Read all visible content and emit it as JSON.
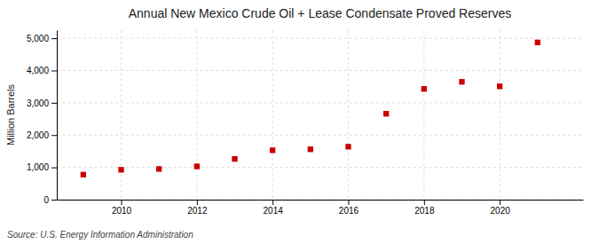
{
  "chart_data": {
    "type": "scatter",
    "title": "Annual New Mexico Crude Oil + Lease Condensate Proved Reserves",
    "ylabel": "Million Barrels",
    "source": "Source: U.S. Energy Information Administration",
    "x": [
      2009,
      2010,
      2011,
      2012,
      2013,
      2014,
      2015,
      2016,
      2017,
      2018,
      2019,
      2020,
      2021
    ],
    "values": [
      775,
      925,
      950,
      1030,
      1260,
      1530,
      1560,
      1640,
      2660,
      3430,
      3650,
      3510,
      4870
    ],
    "color": "#cc0000",
    "marker": "square",
    "xlim": [
      2008.3,
      2022.2
    ],
    "ylim": [
      0,
      5250
    ],
    "xticks": [
      2010,
      2012,
      2014,
      2016,
      2018,
      2020
    ],
    "yticks": [
      0,
      {
        "value": 1000,
        "label": "1,000"
      },
      {
        "value": 2000,
        "label": "2,000"
      },
      {
        "value": 3000,
        "label": "3,000"
      },
      {
        "value": 4000,
        "label": "4,000"
      },
      {
        "value": 5000,
        "label": "5,000"
      }
    ],
    "grid": true
  }
}
